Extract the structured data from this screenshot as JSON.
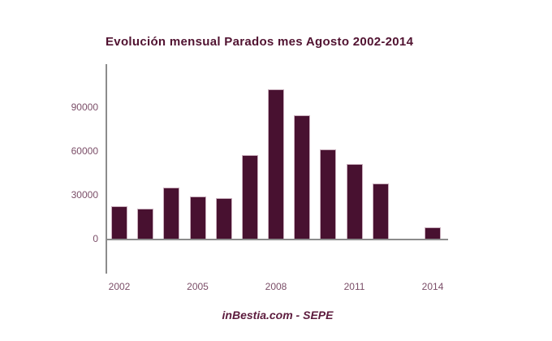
{
  "chart_data": {
    "type": "bar",
    "title": "Evolución mensual Parados mes Agosto 2002-2014",
    "source_caption": "inBestia.com - SEPE",
    "categories": [
      "2002",
      "2003",
      "2004",
      "2005",
      "2006",
      "2007",
      "2008",
      "2009",
      "2010",
      "2011",
      "2012",
      "2013",
      "2014"
    ],
    "values": [
      22000,
      20500,
      35000,
      29000,
      28000,
      57000,
      102000,
      84500,
      61000,
      51000,
      38000,
      0,
      8000
    ],
    "x_tick_labels": [
      "2002",
      "2005",
      "2008",
      "2011",
      "2014"
    ],
    "y_ticks": [
      0,
      30000,
      60000,
      90000
    ],
    "y_tick_labels": [
      "0",
      "30000",
      "60000",
      "90000"
    ],
    "ylim": [
      0,
      120000
    ],
    "xlabel": "",
    "ylabel": "",
    "legend": "none",
    "grid": false,
    "colors": {
      "background": "#ffffff",
      "bar_fill": "#481130",
      "bar_stroke": "#c9aebc",
      "title_text": "#511331",
      "tick_text": "#7b4e68",
      "axis_line": "#8c8c8c",
      "footer_text": "#5c1b3d"
    }
  }
}
